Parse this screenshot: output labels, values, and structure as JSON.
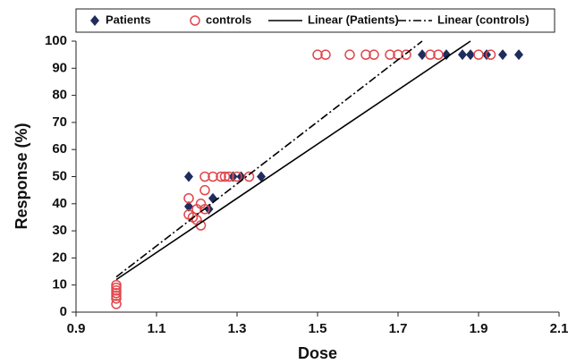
{
  "chart_data": {
    "type": "scatter",
    "x_label": "Dose",
    "y_label": "Response (%)",
    "xlim": [
      0.9,
      2.1
    ],
    "xticks": [
      0.9,
      1.1,
      1.3,
      1.5,
      1.7,
      1.9,
      2.1
    ],
    "ylim": [
      0,
      100
    ],
    "yticks": [
      0,
      10,
      20,
      30,
      40,
      50,
      60,
      70,
      80,
      90,
      100
    ],
    "grid": false,
    "legend": "top",
    "series": [
      {
        "name": "Patients",
        "color": "#1f2d5c",
        "marker": "diamond",
        "x": [
          1.18,
          1.18,
          1.23,
          1.24,
          1.29,
          1.31,
          1.36,
          1.76,
          1.82,
          1.86,
          1.88,
          1.92,
          1.96,
          2.0
        ],
        "values": [
          50,
          39,
          38,
          42,
          50,
          50,
          50,
          95,
          95,
          95,
          95,
          95,
          95,
          95
        ]
      },
      {
        "name": "controls",
        "color": "#e0474c",
        "marker": "circle",
        "x": [
          1.0,
          1.0,
          1.0,
          1.0,
          1.0,
          1.0,
          1.0,
          1.18,
          1.18,
          1.19,
          1.2,
          1.21,
          1.21,
          1.2,
          1.22,
          1.22,
          1.22,
          1.24,
          1.26,
          1.27,
          1.28,
          1.3,
          1.33,
          1.5,
          1.52,
          1.58,
          1.62,
          1.64,
          1.68,
          1.7,
          1.72,
          1.78,
          1.8,
          1.9,
          1.93
        ],
        "values": [
          3,
          5,
          6,
          7,
          8,
          9,
          10,
          42,
          36,
          35,
          34,
          32,
          40,
          38,
          45,
          38,
          50,
          50,
          50,
          50,
          50,
          50,
          50,
          95,
          95,
          95,
          95,
          95,
          95,
          95,
          95,
          95,
          95,
          95,
          95
        ]
      },
      {
        "name": "Linear (Patients)",
        "color": "#000000",
        "dash": "solid",
        "x": [
          1.0,
          1.88
        ],
        "values": [
          12,
          100
        ]
      },
      {
        "name": "Linear (controls)",
        "color": "#000000",
        "dash": "dash-dot",
        "x": [
          1.0,
          1.76
        ],
        "values": [
          13,
          100
        ]
      }
    ]
  }
}
